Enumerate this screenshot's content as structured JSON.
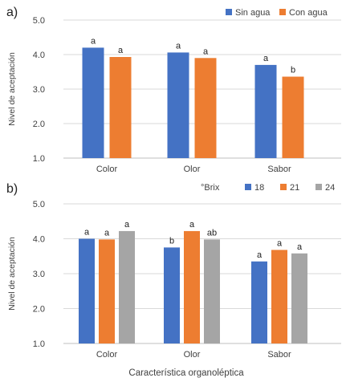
{
  "chart_data": [
    {
      "type": "bar",
      "panel_label": "a)",
      "categories": [
        "Color",
        "Olor",
        "Sabor"
      ],
      "ylabel": "Nivel de aceptación",
      "xlabel": "",
      "ylim": [
        1.0,
        5.0
      ],
      "yticks": [
        "1.0",
        "2.0",
        "3.0",
        "4.0",
        "5.0"
      ],
      "legend_title": "",
      "legend_position": "top-right",
      "series": [
        {
          "name": "Sin agua",
          "color": "#4472C4",
          "values": [
            4.2,
            4.06,
            3.7
          ],
          "labels": [
            "a",
            "a",
            "a"
          ]
        },
        {
          "name": "Con agua",
          "color": "#ED7D31",
          "values": [
            3.93,
            3.9,
            3.36
          ],
          "labels": [
            "a",
            "a",
            "b"
          ]
        }
      ]
    },
    {
      "type": "bar",
      "panel_label": "b)",
      "categories": [
        "Color",
        "Olor",
        "Sabor"
      ],
      "ylabel": "Nivel de aceptación",
      "xlabel": "Característica organoléptica",
      "ylim": [
        1.0,
        5.0
      ],
      "yticks": [
        "1.0",
        "2.0",
        "3.0",
        "4.0",
        "5.0"
      ],
      "legend_title": "°Brix",
      "legend_position": "top-right",
      "series": [
        {
          "name": "18",
          "color": "#4472C4",
          "values": [
            4.0,
            3.75,
            3.35
          ],
          "labels": [
            "a",
            "b",
            "a"
          ]
        },
        {
          "name": "21",
          "color": "#ED7D31",
          "values": [
            3.98,
            4.22,
            3.68
          ],
          "labels": [
            "a",
            "a",
            "a"
          ]
        },
        {
          "name": "24",
          "color": "#A5A5A5",
          "values": [
            4.22,
            3.98,
            3.58
          ],
          "labels": [
            "a",
            "ab",
            "a"
          ]
        }
      ]
    }
  ]
}
